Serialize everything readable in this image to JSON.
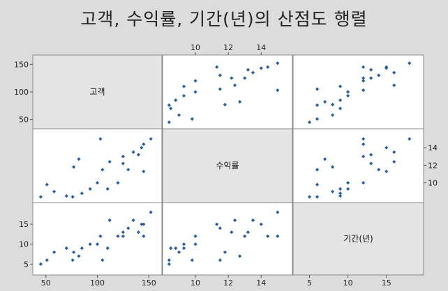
{
  "chart_data": {
    "type": "scatter",
    "title": "고객, 수익률, 기간(년)의 산점도 행렬",
    "variables": [
      "고객",
      "수익률",
      "기간(년)"
    ],
    "ticks": {
      "고객": [
        50,
        100,
        150
      ],
      "수익률": [
        10,
        12,
        14
      ],
      "기간(년)": [
        5,
        10,
        15
      ]
    },
    "ranges": {
      "고객": [
        42,
        158
      ],
      "수익률": [
        8.3,
        15.6
      ],
      "기간(년)": [
        3.5,
        19.2
      ]
    },
    "marker_color": "#2a5e9e",
    "points": [
      {
        "고객": 45,
        "수익률": 8.4,
        "기간(년)": 5
      },
      {
        "고객": 51,
        "수익률": 9.8,
        "기간(년)": 6
      },
      {
        "고객": 58,
        "수익률": 9.0,
        "기간(년)": 8
      },
      {
        "고객": 70,
        "수익률": 8.5,
        "기간(년)": 9
      },
      {
        "고객": 76,
        "수익률": 8.4,
        "기간(년)": 6
      },
      {
        "고객": 77,
        "수익률": 11.8,
        "기간(년)": 8
      },
      {
        "고객": 82,
        "수익률": 12.7,
        "기간(년)": 7
      },
      {
        "고객": 85,
        "수익률": 8.8,
        "기간(년)": 9
      },
      {
        "고객": 93,
        "수익률": 9.3,
        "기간(년)": 10
      },
      {
        "고객": 100,
        "수익률": 10.0,
        "기간(년)": 10
      },
      {
        "고객": 103,
        "수익률": 15.0,
        "기간(년)": 12
      },
      {
        "고객": 105,
        "수익률": 11.5,
        "기간(년)": 6
      },
      {
        "고객": 110,
        "수익률": 9.3,
        "기간(년)": 9
      },
      {
        "고객": 112,
        "수익률": 12.4,
        "기간(년)": 16
      },
      {
        "고객": 120,
        "수익률": 10.0,
        "기간(년)": 12
      },
      {
        "고객": 125,
        "수익률": 12.2,
        "기간(년)": 13
      },
      {
        "고객": 125,
        "수익률": 13.0,
        "기간(년)": 12
      },
      {
        "고객": 130,
        "수익률": 11.5,
        "기간(년)": 14
      },
      {
        "고객": 135,
        "수익률": 13.5,
        "기간(년)": 16
      },
      {
        "고객": 140,
        "수익률": 13.2,
        "기간(년)": 13
      },
      {
        "고객": 143,
        "수익률": 14.0,
        "기간(년)": 15
      },
      {
        "고객": 145,
        "수익률": 11.3,
        "기간(년)": 15
      },
      {
        "고객": 145,
        "수익률": 14.4,
        "기간(년)": 12
      },
      {
        "고객": 152,
        "수익률": 15.0,
        "기간(년)": 18
      }
    ]
  }
}
